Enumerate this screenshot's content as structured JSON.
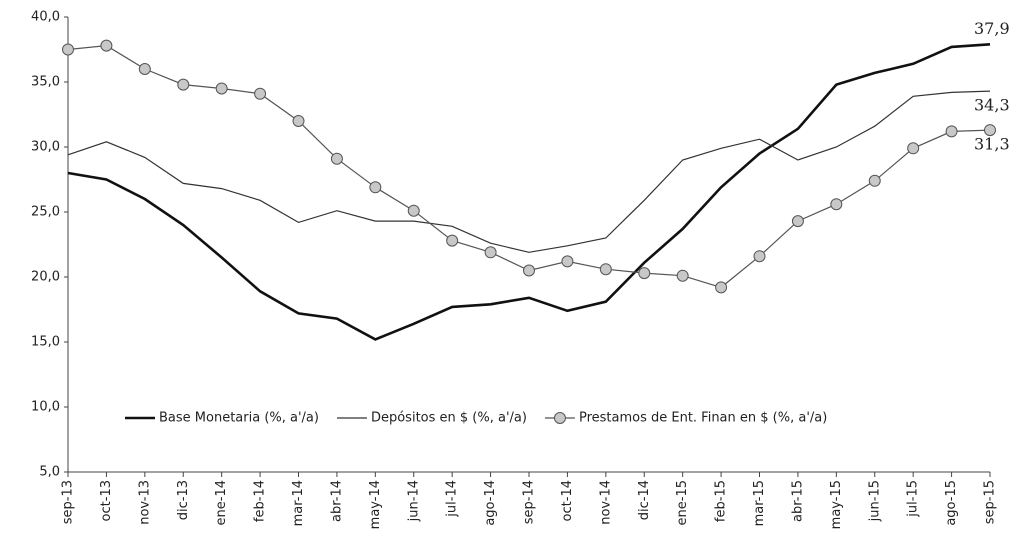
{
  "chart_data": {
    "type": "line",
    "categories": [
      "sep-13",
      "oct-13",
      "nov-13",
      "dic-13",
      "ene-14",
      "feb-14",
      "mar-14",
      "abr-14",
      "may-14",
      "jun-14",
      "jul-14",
      "ago-14",
      "sep-14",
      "oct-14",
      "nov-14",
      "dic-14",
      "ene-15",
      "feb-15",
      "mar-15",
      "abr-15",
      "may-15",
      "jun-15",
      "jul-15",
      "ago-15",
      "sep-15"
    ],
    "series": [
      {
        "name": "Base Monetaria (%, a'/a)",
        "color": "#111111",
        "width": 2.6,
        "marker": false,
        "values": [
          28.0,
          27.5,
          26.0,
          24.0,
          21.5,
          18.9,
          17.2,
          16.8,
          15.2,
          16.4,
          17.7,
          17.9,
          18.4,
          17.4,
          18.1,
          21.1,
          23.7,
          26.9,
          29.5,
          31.4,
          34.8,
          35.7,
          36.4,
          37.7,
          37.9
        ],
        "value_labels": [
          null,
          null,
          null,
          null,
          null,
          null,
          null,
          null,
          null,
          null,
          null,
          null,
          null,
          null,
          null,
          null,
          null,
          null,
          null,
          null,
          null,
          null,
          null,
          null,
          "37,9"
        ]
      },
      {
        "name": "Depósitos en $ (%, a'/a)",
        "color": "#333333",
        "width": 1.2,
        "marker": false,
        "values": [
          29.4,
          30.4,
          29.2,
          27.2,
          26.8,
          25.9,
          24.2,
          25.1,
          24.3,
          24.3,
          23.9,
          22.6,
          21.9,
          22.4,
          23.0,
          25.9,
          29.0,
          29.9,
          30.6,
          29.0,
          30.0,
          31.6,
          33.9,
          34.2,
          34.3
        ],
        "value_labels": [
          null,
          null,
          null,
          null,
          null,
          null,
          null,
          null,
          null,
          null,
          null,
          null,
          null,
          null,
          null,
          null,
          null,
          null,
          null,
          null,
          null,
          null,
          null,
          null,
          "34,3"
        ]
      },
      {
        "name": "Prestamos de Ent. Finan en $ (%, a'/a)",
        "color": "#555555",
        "width": 1.2,
        "marker": true,
        "marker_color": "#c8c8c8",
        "values": [
          37.5,
          37.8,
          36.0,
          34.8,
          34.5,
          34.1,
          32.0,
          29.1,
          26.9,
          25.1,
          22.8,
          21.9,
          20.5,
          21.2,
          20.6,
          20.3,
          20.1,
          19.2,
          21.6,
          24.3,
          25.6,
          27.4,
          29.9,
          31.2,
          31.3
        ],
        "value_labels": [
          null,
          null,
          null,
          null,
          null,
          null,
          null,
          null,
          null,
          null,
          null,
          null,
          null,
          null,
          null,
          null,
          null,
          null,
          null,
          null,
          null,
          null,
          null,
          null,
          "31,3"
        ]
      }
    ],
    "ylim": [
      5,
      40
    ],
    "yticks": [
      {
        "value": 5,
        "label": "5,0"
      },
      {
        "value": 10,
        "label": "10,0"
      },
      {
        "value": 15,
        "label": "15,0"
      },
      {
        "value": 20,
        "label": "20,0"
      },
      {
        "value": 25,
        "label": "25,0"
      },
      {
        "value": 30,
        "label": "30,0"
      },
      {
        "value": 35,
        "label": "35,0"
      },
      {
        "value": 40,
        "label": "40,0"
      }
    ],
    "grid": false,
    "legend": "lower center"
  }
}
